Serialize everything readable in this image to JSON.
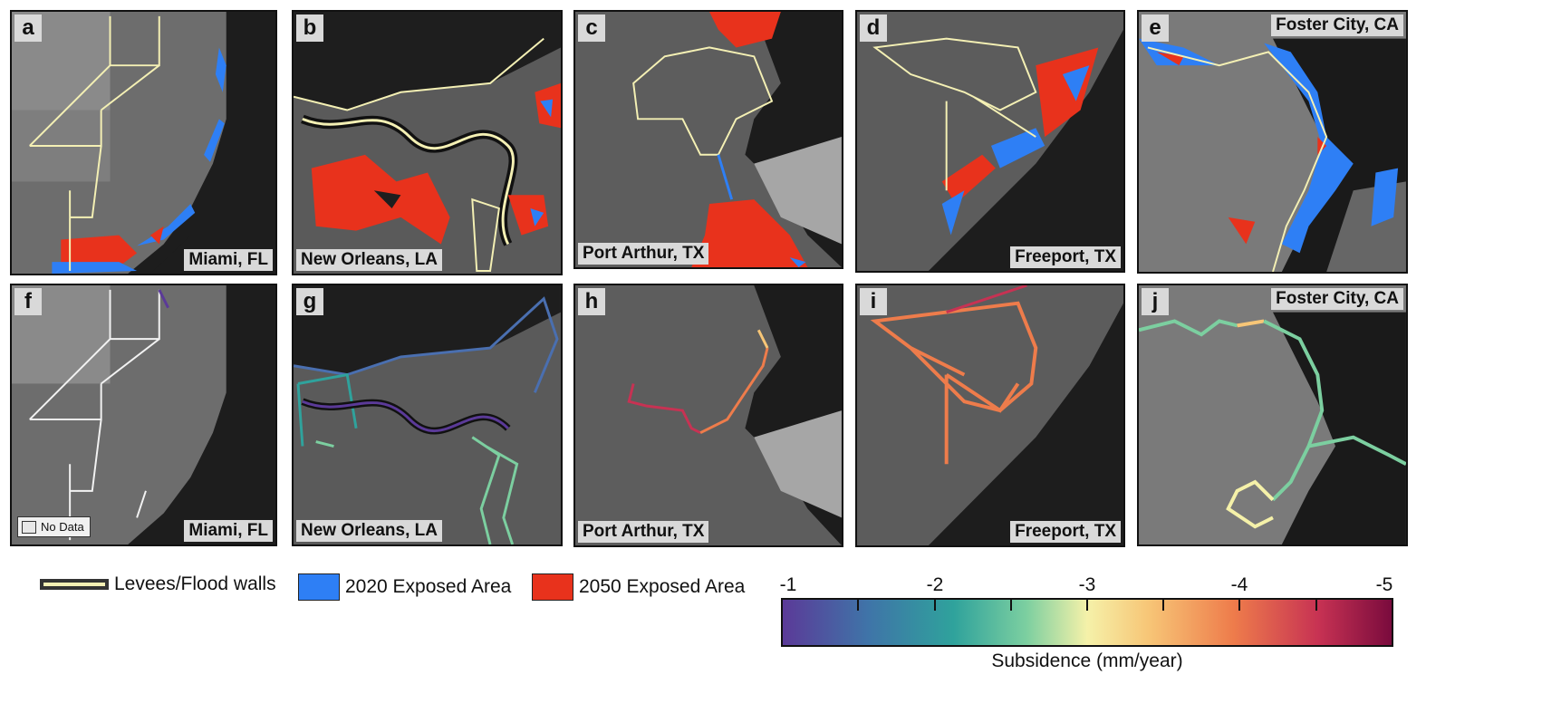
{
  "panels": [
    {
      "letter": "a",
      "location": "Miami, FL"
    },
    {
      "letter": "b",
      "location": "New Orleans, LA"
    },
    {
      "letter": "c",
      "location": "Port Arthur, TX"
    },
    {
      "letter": "d",
      "location": "Freeport, TX"
    },
    {
      "letter": "e",
      "location": "Foster City, CA"
    },
    {
      "letter": "f",
      "location": "Miami, FL"
    },
    {
      "letter": "g",
      "location": "New Orleans, LA"
    },
    {
      "letter": "h",
      "location": "Port Arthur, TX"
    },
    {
      "letter": "i",
      "location": "Freeport, TX"
    },
    {
      "letter": "j",
      "location": "Foster City, CA"
    }
  ],
  "no_data_label": "No Data",
  "legend": {
    "levees": "Levees/Flood walls",
    "exposed_2020": "2020 Exposed Area",
    "exposed_2050": "2050 Exposed Area"
  },
  "colors": {
    "levee": "#f4f0b4",
    "exposed_2020": "#2e7ff5",
    "exposed_2050": "#e8321c",
    "ocean": "#232323",
    "land": "#6b6b6b"
  },
  "colorbar": {
    "title": "Subsidence (mm/year)",
    "tick_labels": [
      "-1",
      "-2",
      "-3",
      "-4",
      "-5"
    ],
    "min": -1,
    "max": -5,
    "colormap": "plasma-like spectral (purple-teal-yellow-orange-crimson)"
  }
}
